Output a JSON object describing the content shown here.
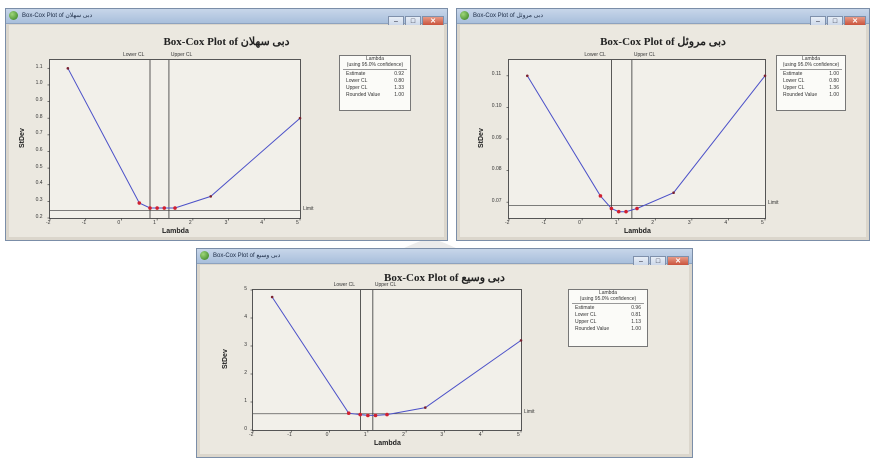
{
  "common": {
    "y_label": "StDev",
    "x_label": "Lambda",
    "limit_label": "Limit",
    "lower_cl": "Lower CL",
    "upper_cl": "Upper CL",
    "legend": {
      "title": "Lambda",
      "subtitle": "(using 95.0% confidence)",
      "estimate": "Estimate",
      "lower": "Lower CL",
      "upper": "Upper CL",
      "rounded": "Rounded Value"
    },
    "buttons": {
      "minimize": "–",
      "maximize": "□",
      "close": "✕"
    },
    "colors": {
      "curve": "#4b50c8",
      "point": "#d02030",
      "accent": "#e04020"
    }
  },
  "windows": [
    {
      "id": "w1",
      "title_bar": "Box-Cox Plot of دبی سهلان",
      "plot_title": "Box-Cox Plot of دبی سهلان",
      "legend_values": {
        "estimate": "0.92",
        "lower": "0.80",
        "upper": "1.33",
        "rounded": "1.00"
      },
      "chart_data": {
        "type": "line",
        "x": [
          -1.5,
          0.5,
          0.8,
          1.0,
          1.2,
          1.5,
          2.5,
          5.0
        ],
        "y": [
          1.1,
          0.29,
          0.26,
          0.26,
          0.26,
          0.26,
          0.33,
          0.8
        ],
        "xlim": [
          -2,
          5
        ],
        "ylim": [
          0.2,
          1.15
        ],
        "xticks": [
          "-2",
          "-1",
          "0",
          "1",
          "2",
          "3",
          "4",
          "5"
        ],
        "yticks": [
          "0.2",
          "0.3",
          "0.4",
          "0.5",
          "0.6",
          "0.7",
          "0.8",
          "0.9",
          "1.0",
          "1.1"
        ],
        "limit": 0.245,
        "lower_cl": 0.8,
        "upper_cl": 1.33,
        "xlabel": "Lambda",
        "ylabel": "StDev"
      }
    },
    {
      "id": "w2",
      "title_bar": "Box-Cox Plot of دبی مروئل",
      "plot_title": "Box-Cox Plot of دبی مروئل",
      "legend_values": {
        "estimate": "1.00",
        "lower": "0.80",
        "upper": "1.36",
        "rounded": "1.00"
      },
      "chart_data": {
        "type": "line",
        "x": [
          -1.5,
          0.5,
          0.8,
          1.0,
          1.2,
          1.5,
          2.5,
          5.0
        ],
        "y": [
          0.11,
          0.072,
          0.068,
          0.067,
          0.067,
          0.068,
          0.073,
          0.11
        ],
        "xlim": [
          -2,
          5
        ],
        "ylim": [
          0.065,
          0.115
        ],
        "xticks": [
          "-2",
          "-1",
          "0",
          "1",
          "2",
          "3",
          "4",
          "5"
        ],
        "yticks": [
          "0.07",
          "0.08",
          "0.09",
          "0.10",
          "0.11"
        ],
        "limit": 0.069,
        "lower_cl": 0.8,
        "upper_cl": 1.36,
        "xlabel": "Lambda",
        "ylabel": "StDev"
      }
    },
    {
      "id": "w3",
      "title_bar": "Box-Cox Plot of دبی وسیع",
      "plot_title": "Box-Cox Plot of دبی وسیع",
      "legend_values": {
        "estimate": "0.96",
        "lower": "0.81",
        "upper": "1.13",
        "rounded": "1.00"
      },
      "chart_data": {
        "type": "line",
        "x": [
          -1.5,
          0.5,
          0.8,
          1.0,
          1.2,
          1.5,
          2.5,
          5.0
        ],
        "y": [
          4.75,
          0.6,
          0.55,
          0.52,
          0.52,
          0.55,
          0.8,
          3.2
        ],
        "xlim": [
          -2,
          5
        ],
        "ylim": [
          0,
          5
        ],
        "xticks": [
          "-2",
          "-1",
          "0",
          "1",
          "2",
          "3",
          "4",
          "5"
        ],
        "yticks": [
          "0",
          "1",
          "2",
          "3",
          "4",
          "5"
        ],
        "limit": 0.58,
        "lower_cl": 0.81,
        "upper_cl": 1.13,
        "xlabel": "Lambda",
        "ylabel": "StDev"
      }
    }
  ]
}
